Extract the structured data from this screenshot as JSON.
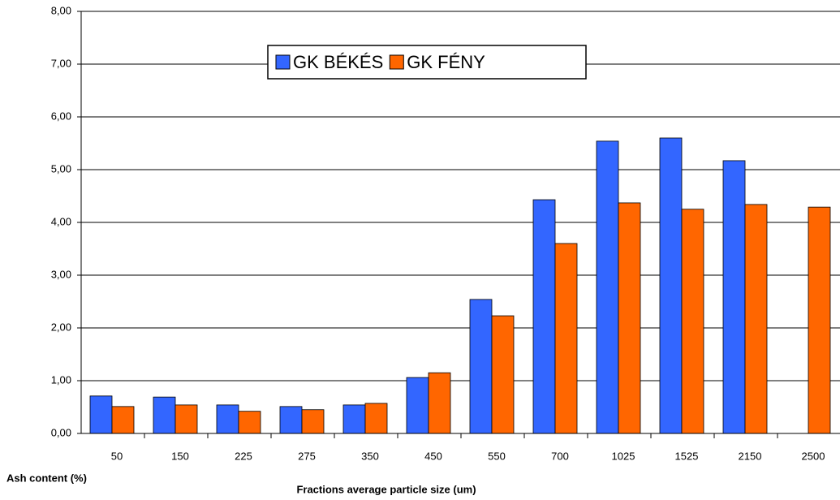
{
  "chart_data": {
    "type": "bar",
    "x_label": "Fractions average particle size (um)",
    "y_label": "Ash content (%)",
    "categories": [
      "50",
      "150",
      "225",
      "275",
      "350",
      "450",
      "550",
      "700",
      "1025",
      "1525",
      "2150",
      "2500"
    ],
    "series": [
      {
        "name": "GK BÉKÉS",
        "color": "#3366ff",
        "values": [
          0.71,
          0.69,
          0.54,
          0.51,
          0.54,
          1.06,
          2.54,
          4.43,
          5.54,
          5.6,
          5.17,
          null
        ]
      },
      {
        "name": "GK FÉNY",
        "color": "#ff6600",
        "values": [
          0.51,
          0.54,
          0.42,
          0.45,
          0.57,
          1.15,
          2.23,
          3.6,
          4.37,
          4.25,
          4.34,
          4.29
        ]
      }
    ],
    "ylim": [
      0,
      8
    ],
    "yticks": [
      {
        "value": 0,
        "label": "0,00"
      },
      {
        "value": 1,
        "label": "1,00"
      },
      {
        "value": 2,
        "label": "2,00"
      },
      {
        "value": 3,
        "label": "3,00"
      },
      {
        "value": 4,
        "label": "4,00"
      },
      {
        "value": 5,
        "label": "5,00"
      },
      {
        "value": 6,
        "label": "6,00"
      },
      {
        "value": 7,
        "label": "7,00"
      },
      {
        "value": 8,
        "label": "8,00"
      }
    ],
    "grid": true
  }
}
